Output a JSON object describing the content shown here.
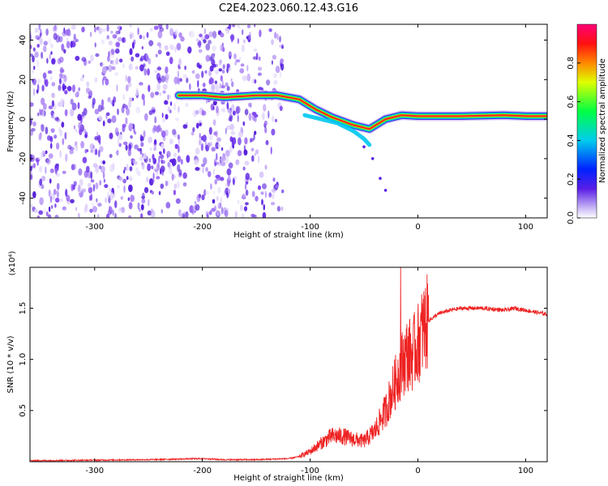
{
  "title": "C2E4.2023.060.12.43.G16",
  "colors": {
    "snr_line": "#ee2222",
    "axis": "#000000"
  },
  "chart_data": [
    {
      "type": "heatmap",
      "name": "spectrogram",
      "xlabel": "Height of straight line (km)",
      "ylabel": "Frequency (Hz)",
      "xlim": [
        -360,
        120
      ],
      "ylim": [
        -50,
        48
      ],
      "xticks": [
        -300,
        -200,
        -100,
        0,
        100
      ],
      "yticks": [
        -40,
        -20,
        0,
        20,
        40
      ],
      "grid": false,
      "colorbar": {
        "label": "Normalized spectral amplitude",
        "range": [
          0,
          1
        ],
        "ticks": [
          "0.0",
          "0.2",
          "0.4",
          "0.6",
          "0.8"
        ],
        "colormap": "rainbow"
      },
      "noise_region_x": [
        -360,
        -125
      ],
      "ridge": [
        {
          "x": -222,
          "y": 12
        },
        {
          "x": -200,
          "y": 12
        },
        {
          "x": -180,
          "y": 11
        },
        {
          "x": -150,
          "y": 12
        },
        {
          "x": -130,
          "y": 12
        },
        {
          "x": -110,
          "y": 10
        },
        {
          "x": -95,
          "y": 5
        },
        {
          "x": -80,
          "y": 1
        },
        {
          "x": -60,
          "y": -3
        },
        {
          "x": -45,
          "y": -5
        },
        {
          "x": -30,
          "y": 0
        },
        {
          "x": -15,
          "y": 2
        },
        {
          "x": 0,
          "y": 1.5
        },
        {
          "x": 40,
          "y": 1.5
        },
        {
          "x": 80,
          "y": 2
        },
        {
          "x": 100,
          "y": 1.5
        },
        {
          "x": 120,
          "y": 1.5
        }
      ]
    },
    {
      "type": "line",
      "name": "snr",
      "xlabel": "Height of straight line (km)",
      "ylabel": "SNR (10 * v/v)",
      "y_multiplier": "(x10⁴)",
      "xlim": [
        -360,
        120
      ],
      "ylim": [
        0,
        1.9
      ],
      "xticks": [
        -300,
        -200,
        -100,
        0,
        100
      ],
      "yticks": [
        "0.5",
        "1.0",
        "1.5"
      ],
      "grid": false,
      "series": [
        {
          "x": [
            -360,
            -300,
            -250,
            -200,
            -180,
            -150,
            -120,
            -110,
            -100,
            -90,
            -80,
            -70,
            -60,
            -50,
            -40,
            -30,
            -20,
            -15,
            -10,
            -5,
            0,
            5,
            10,
            20,
            30,
            40,
            60,
            80,
            90,
            100,
            110,
            120
          ],
          "y": [
            0.01,
            0.015,
            0.02,
            0.03,
            0.02,
            0.02,
            0.03,
            0.05,
            0.1,
            0.18,
            0.25,
            0.25,
            0.22,
            0.2,
            0.3,
            0.5,
            0.8,
            0.95,
            1.05,
            1.05,
            1.15,
            1.3,
            1.38,
            1.45,
            1.48,
            1.5,
            1.5,
            1.48,
            1.5,
            1.48,
            1.46,
            1.44
          ]
        }
      ],
      "spike": {
        "x": -16,
        "y": 1.9
      }
    }
  ]
}
